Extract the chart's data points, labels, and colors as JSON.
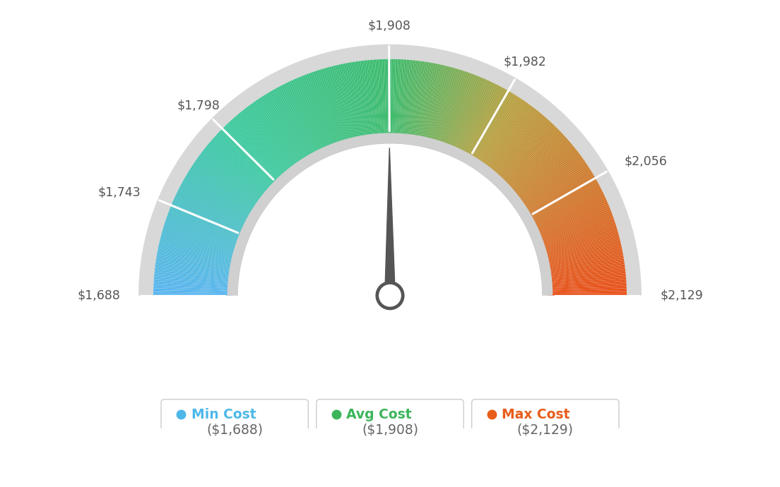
{
  "min_val": 1688,
  "max_val": 2129,
  "avg_val": 1908,
  "tick_labels": [
    "$1,688",
    "$1,743",
    "$1,798",
    "$1,908",
    "$1,982",
    "$2,056",
    "$2,129"
  ],
  "tick_values": [
    1688,
    1743,
    1798,
    1908,
    1982,
    2056,
    2129
  ],
  "legend_items": [
    {
      "label": "Min Cost",
      "value": "($1,688)",
      "color": "#4db8e8"
    },
    {
      "label": "Avg Cost",
      "value": "($1,908)",
      "color": "#3cb55a"
    },
    {
      "label": "Max Cost",
      "value": "($2,129)",
      "color": "#e85d1a"
    }
  ],
  "color_stops": [
    [
      0.0,
      "#5ab5ef"
    ],
    [
      0.25,
      "#3dc9a0"
    ],
    [
      0.5,
      "#3dbb6e"
    ],
    [
      0.68,
      "#b8a040"
    ],
    [
      1.0,
      "#e8511a"
    ]
  ],
  "needle_color": "#555555",
  "grey_outer": "#d0d0d0",
  "grey_inner": "#c8c8c8",
  "background_color": "#ffffff"
}
